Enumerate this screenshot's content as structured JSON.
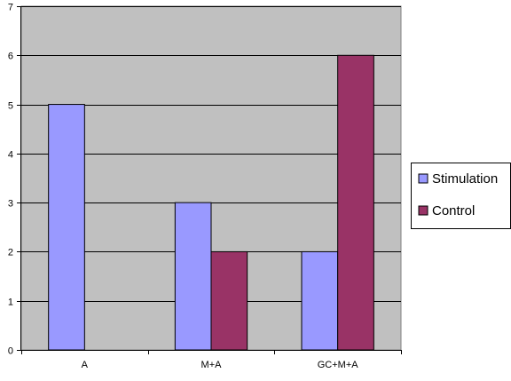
{
  "chart_data": {
    "type": "bar",
    "categories": [
      "A",
      "M+A",
      "GC+M+A"
    ],
    "series": [
      {
        "name": "Stimulation",
        "values": [
          5,
          3,
          2
        ],
        "color": "#9999ff"
      },
      {
        "name": "Control",
        "values": [
          0,
          2,
          6
        ],
        "color": "#993366"
      }
    ],
    "title": "",
    "xlabel": "",
    "ylabel": "",
    "ylim": [
      0,
      7
    ],
    "yticks": [
      0,
      1,
      2,
      3,
      4,
      5,
      6,
      7
    ],
    "grid": true,
    "legend_position": "right",
    "plot_background": "#c0c0c0"
  }
}
